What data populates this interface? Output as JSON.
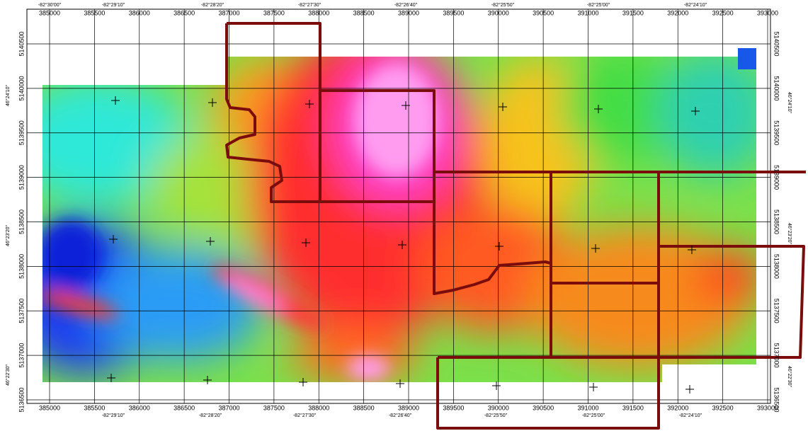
{
  "map": {
    "eastings": [
      385000,
      385500,
      386000,
      386500,
      387000,
      387500,
      388000,
      388500,
      389000,
      389500,
      390000,
      390500,
      391000,
      391500,
      392000,
      392500,
      393000
    ],
    "northings": [
      5140500,
      5140000,
      5139500,
      5139000,
      5138500,
      5138000,
      5137500,
      5137000,
      5136500
    ],
    "lon_labels_top": [
      "-82°30'00\"",
      "-82°29'10\"",
      "-82°28'20\"",
      "-82°27'30\"",
      "-82°26'40\"",
      "-82°25'50\"",
      "-82°25'00\"",
      "-82°24'10\""
    ],
    "lon_labels_bottom": [
      "-82°29'10\"",
      "-82°28'20\"",
      "-82°27'30\"",
      "-82°26'40\"",
      "-82°25'50\"",
      "-82°25'00\"",
      "-82°24'10\""
    ],
    "lat_labels_left": [
      "46°24'10\"",
      "46°23'20\"",
      "46°22'30\""
    ],
    "lat_labels_right": [
      "46°24'10\"",
      "46°23'20\"",
      "46°22'30\""
    ]
  }
}
